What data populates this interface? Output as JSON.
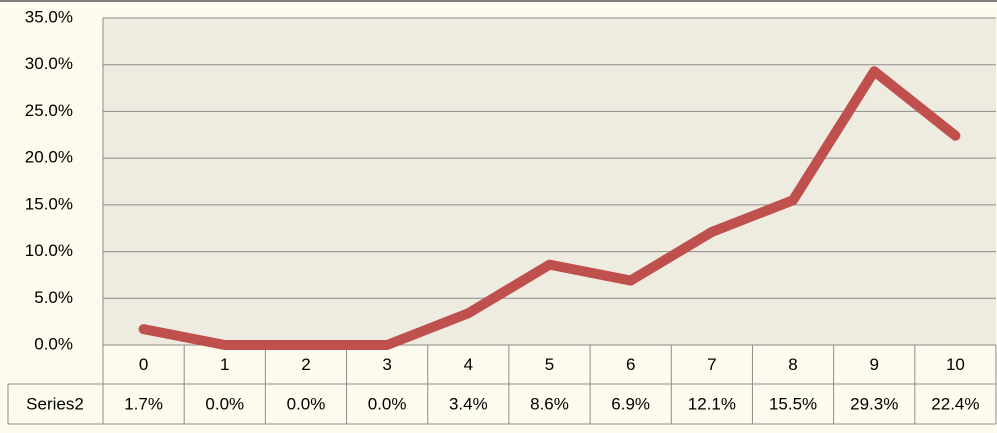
{
  "chart_data": {
    "type": "line",
    "categories": [
      "0",
      "1",
      "2",
      "3",
      "4",
      "5",
      "6",
      "7",
      "8",
      "9",
      "10"
    ],
    "series": [
      {
        "name": "Series2",
        "color": "#c0504d",
        "values": [
          1.7,
          0.0,
          0.0,
          0.0,
          3.4,
          8.6,
          6.9,
          12.1,
          15.5,
          29.3,
          22.4
        ],
        "value_labels": [
          "1.7%",
          "0.0%",
          "0.0%",
          "0.0%",
          "3.4%",
          "8.6%",
          "6.9%",
          "12.1%",
          "15.5%",
          "29.3%",
          "22.4%"
        ]
      }
    ],
    "ylim": [
      0,
      35
    ],
    "yticks": [
      {
        "value": 0,
        "label": "0.0%"
      },
      {
        "value": 5,
        "label": "5.0%"
      },
      {
        "value": 10,
        "label": "10.0%"
      },
      {
        "value": 15,
        "label": "15.0%"
      },
      {
        "value": 20,
        "label": "20.0%"
      },
      {
        "value": 25,
        "label": "25.0%"
      },
      {
        "value": 30,
        "label": "30.0%"
      },
      {
        "value": 35,
        "label": "35.0%"
      }
    ],
    "grid": true
  }
}
